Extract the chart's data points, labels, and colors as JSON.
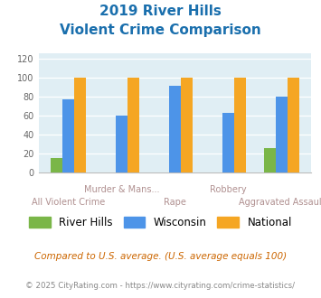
{
  "title_line1": "2019 River Hills",
  "title_line2": "Violent Crime Comparison",
  "categories": [
    "All Violent Crime",
    "Murder & Mans...",
    "Rape",
    "Robbery",
    "Aggravated Assault"
  ],
  "river_hills": [
    16,
    0,
    0,
    0,
    26
  ],
  "wisconsin": [
    77,
    60,
    91,
    63,
    80
  ],
  "national": [
    100,
    100,
    100,
    100,
    100
  ],
  "color_rh": "#7ab648",
  "color_wi": "#4d94e8",
  "color_nat": "#f5a623",
  "ylabel_values": [
    0,
    20,
    40,
    60,
    80,
    100,
    120
  ],
  "ylim": [
    0,
    125
  ],
  "legend_labels": [
    "River Hills",
    "Wisconsin",
    "National"
  ],
  "footnote1": "Compared to U.S. average. (U.S. average equals 100)",
  "footnote2": "© 2025 CityRating.com - https://www.cityrating.com/crime-statistics/",
  "bg_color": "#e0eef4",
  "title_color": "#1a6fad",
  "footnote1_color": "#cc6600",
  "footnote2_color": "#888888",
  "xlabel_color": "#b09090",
  "bar_width": 0.22,
  "labels_top": [
    [
      1,
      "Murder & Mans..."
    ],
    [
      3,
      "Robbery"
    ]
  ],
  "labels_bottom": [
    [
      0,
      "All Violent Crime"
    ],
    [
      2,
      "Rape"
    ],
    [
      4,
      "Aggravated Assault"
    ]
  ]
}
